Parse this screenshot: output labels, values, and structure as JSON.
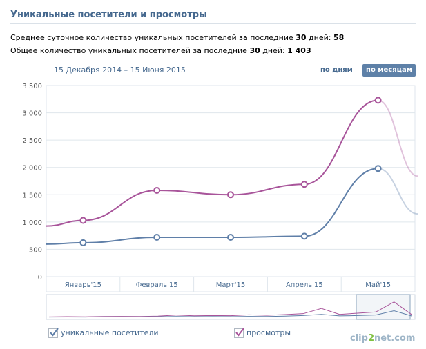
{
  "header": {
    "title": "Уникальные посетители и просмотры"
  },
  "stats": {
    "daily_prefix": "Среднее суточное количество уникальных посетителей за последние ",
    "daily_days": "30",
    "daily_mid": " дней: ",
    "daily_value": "58",
    "total_prefix": "Общее количество уникальных посетителей за последние ",
    "total_days": "30",
    "total_mid": " дней: ",
    "total_value": "1 403"
  },
  "period": {
    "range": "15 Декабря 2014 – 15 Июня 2015"
  },
  "toggles": {
    "by_day": "по дням",
    "by_month": "по месяцам"
  },
  "legend": {
    "unique": "уникальные посетители",
    "views": "просмотры"
  },
  "watermark": {
    "left": "clip",
    "mid": "2",
    "right": "net.com"
  },
  "colors": {
    "unique": "#5f7fa8",
    "views": "#a8549a",
    "grid": "#dfe6ec",
    "axis_text": "#45688e"
  },
  "chart_data": {
    "type": "line",
    "categories": [
      "Январь'15",
      "Февраль'15",
      "Март'15",
      "Апрель'15",
      "Май'15"
    ],
    "y_ticks": [
      "0",
      "500",
      "1 000",
      "1 500",
      "2 000",
      "2 500",
      "3 000",
      "3 500"
    ],
    "ylim": [
      0,
      3500
    ],
    "grid": true,
    "legend_position": "bottom",
    "series": [
      {
        "name": "уникальные посетители",
        "values": [
          620,
          720,
          720,
          740,
          1980
        ]
      },
      {
        "name": "просмотры",
        "values": [
          1030,
          1580,
          1500,
          1690,
          3230
        ]
      }
    ]
  }
}
